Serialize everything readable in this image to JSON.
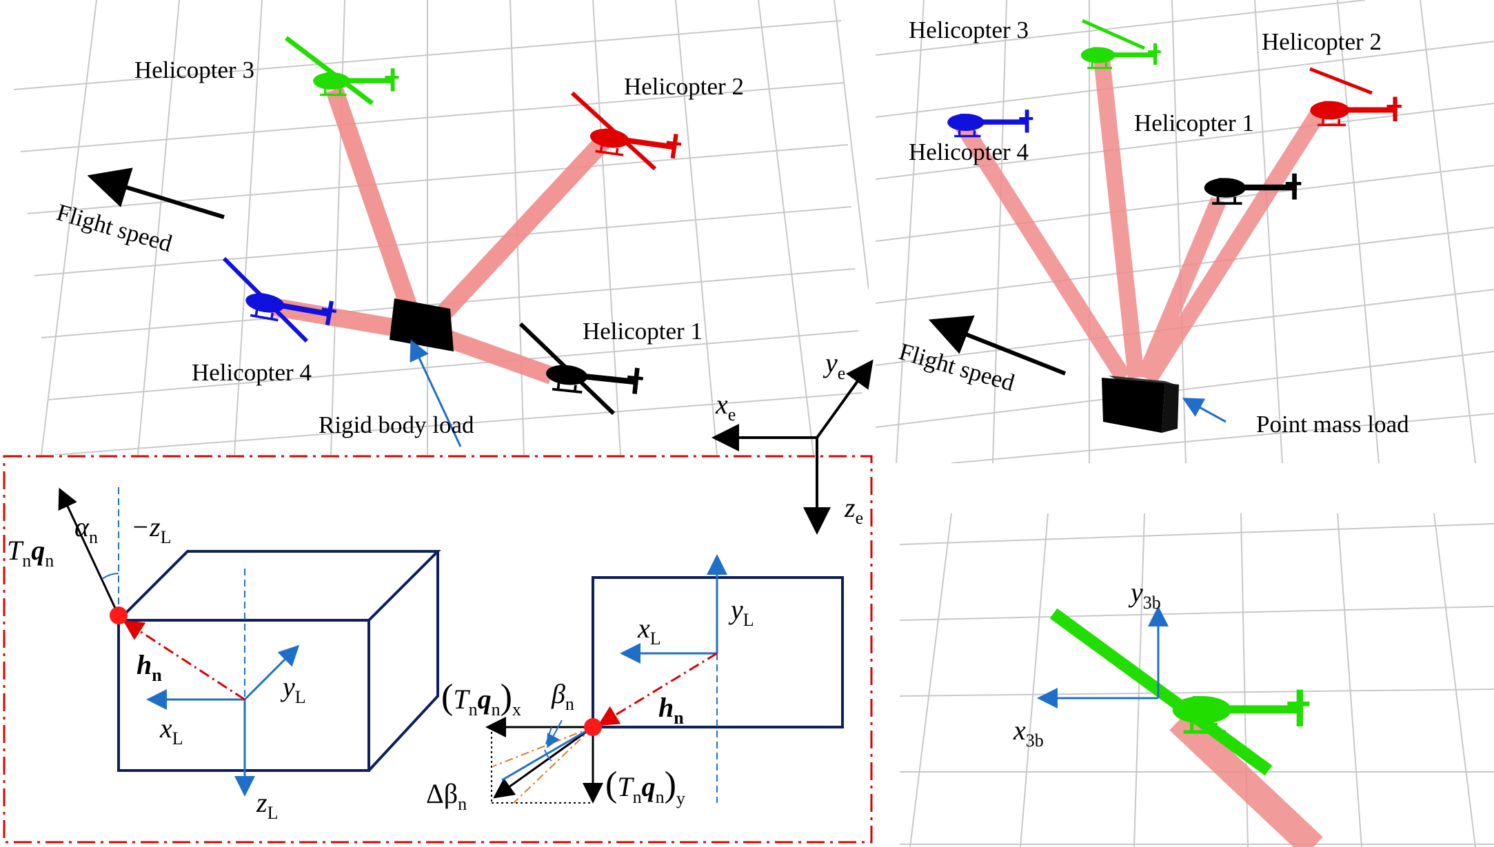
{
  "colors": {
    "grid": "#c8c8c8",
    "cable": "#f08a8a",
    "heli_black": "#000000",
    "heli_red": "#e00000",
    "heli_green": "#22dd00",
    "heli_blue": "#1111dd",
    "box_navy": "#0d1f5c",
    "arrow_blue": "#1f6fc9",
    "dash_red": "#e00000",
    "dash_orange": "#e07820",
    "point_red": "#ff1a1a"
  },
  "panel_rigid": {
    "helicopter_1": "Helicopter 1",
    "helicopter_2": "Helicopter 2",
    "helicopter_3": "Helicopter 3",
    "helicopter_4": "Helicopter 4",
    "flight_speed": "Flight speed",
    "load": "Rigid body load"
  },
  "panel_point": {
    "helicopter_1": "Helicopter 1",
    "helicopter_2": "Helicopter 2",
    "helicopter_3": "Helicopter 3",
    "helicopter_4": "Helicopter 4",
    "flight_speed": "Flight speed",
    "load": "Point mass load"
  },
  "earth_axes": {
    "x": "x",
    "x_sub": "e",
    "y": "y",
    "y_sub": "e",
    "z": "z",
    "z_sub": "e"
  },
  "detail_box3d": {
    "T": "T",
    "T_sub": "n",
    "q": "q",
    "q_sub": "n",
    "alpha": "α",
    "alpha_sub": "n",
    "neg_z": "−z",
    "neg_z_sub": "L",
    "h": "h",
    "h_sub": "n",
    "x": "x",
    "x_sub": "L",
    "y": "y",
    "y_sub": "L",
    "z": "z",
    "z_sub": "L"
  },
  "detail_rect2d": {
    "x": "x",
    "x_sub": "L",
    "y": "y",
    "y_sub": "L",
    "h": "h",
    "h_sub": "n",
    "beta": "β",
    "beta_sub": "n",
    "delta_beta": "Δβ",
    "delta_beta_sub": "n",
    "force_x_open": "(",
    "force_x_T": "T",
    "force_x_n1": "n",
    "force_x_q": "q",
    "force_x_n2": "n",
    "force_x_close": ")",
    "force_x_sub": "x",
    "force_y_open": "(",
    "force_y_T": "T",
    "force_y_n1": "n",
    "force_y_q": "q",
    "force_y_n2": "n",
    "force_y_close": ")",
    "force_y_sub": "y"
  },
  "body_axes": {
    "x": "x",
    "x_sub": "3b",
    "y": "y",
    "y_sub": "3b"
  }
}
